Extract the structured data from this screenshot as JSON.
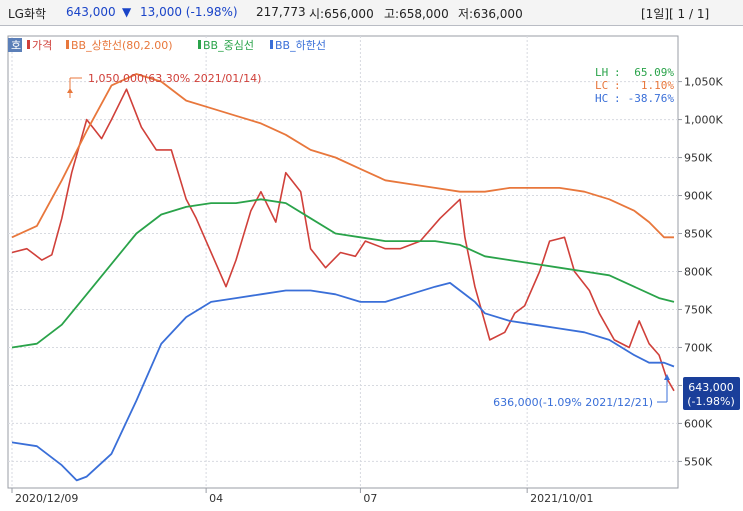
{
  "header": {
    "symbol": "LG화학",
    "price": "643,000",
    "change_arrow": "▼",
    "change": "13,000 (-1.98%)",
    "volume": "217,773",
    "open": "시:656,000",
    "high": "고:658,000",
    "low": "저:636,000",
    "period": "[1일][ 1 / 1]"
  },
  "corner_label": "호",
  "legend": [
    {
      "label": "가격",
      "color": "#d0403a"
    },
    {
      "label": "BB_상한선(80,2.00)",
      "color": "#e8773c"
    },
    {
      "label": "BB_중심선",
      "color": "#2aa34a"
    },
    {
      "label": "BB_하한선",
      "color": "#3a6fd8"
    }
  ],
  "stats": [
    {
      "name": "LH",
      "value": "65.09%",
      "color": "#2aa34a"
    },
    {
      "name": "LC",
      "value": "1.10%",
      "color": "#e8773c"
    },
    {
      "name": "HC",
      "value": "-38.76%",
      "color": "#3a6fd8"
    }
  ],
  "annotations": {
    "high": "1,050,000(63.30% 2021/01/14)",
    "low": "636,000(-1.09% 2021/12/21)"
  },
  "price_tag": {
    "price": "643,000",
    "change": "(-1.98%)"
  },
  "chart_data": {
    "type": "line",
    "y_axis_ticks": [
      "1,050K",
      "1,000K",
      "950K",
      "900K",
      "850K",
      "800K",
      "750K",
      "700K",
      "650K",
      "600K",
      "550K"
    ],
    "y_tick_values": [
      1050,
      1000,
      950,
      900,
      850,
      800,
      750,
      700,
      650,
      600,
      550
    ],
    "ylim": [
      515,
      1110
    ],
    "x_axis_ticks": [
      "2020/12/09",
      "04",
      "07",
      "2021/10/01"
    ],
    "x_tick_index": [
      0,
      78,
      140,
      207
    ],
    "n_bars": 266,
    "series": [
      {
        "name": "가격",
        "color": "#d0403a",
        "points": [
          [
            0,
            825
          ],
          [
            6,
            830
          ],
          [
            12,
            815
          ],
          [
            16,
            822
          ],
          [
            20,
            870
          ],
          [
            24,
            930
          ],
          [
            30,
            1000
          ],
          [
            36,
            975
          ],
          [
            40,
            1000
          ],
          [
            46,
            1040
          ],
          [
            52,
            990
          ],
          [
            58,
            960
          ],
          [
            64,
            960
          ],
          [
            70,
            895
          ],
          [
            74,
            870
          ],
          [
            78,
            840
          ],
          [
            82,
            810
          ],
          [
            86,
            780
          ],
          [
            90,
            815
          ],
          [
            96,
            880
          ],
          [
            100,
            905
          ],
          [
            106,
            865
          ],
          [
            110,
            930
          ],
          [
            116,
            905
          ],
          [
            120,
            830
          ],
          [
            126,
            805
          ],
          [
            132,
            825
          ],
          [
            138,
            820
          ],
          [
            142,
            840
          ],
          [
            150,
            830
          ],
          [
            156,
            830
          ],
          [
            164,
            840
          ],
          [
            172,
            870
          ],
          [
            180,
            895
          ],
          [
            182,
            845
          ],
          [
            186,
            780
          ],
          [
            192,
            710
          ],
          [
            198,
            720
          ],
          [
            202,
            745
          ],
          [
            206,
            755
          ],
          [
            212,
            800
          ],
          [
            216,
            840
          ],
          [
            222,
            845
          ],
          [
            226,
            800
          ],
          [
            232,
            775
          ],
          [
            236,
            745
          ],
          [
            242,
            710
          ],
          [
            248,
            700
          ],
          [
            252,
            735
          ],
          [
            256,
            705
          ],
          [
            260,
            690
          ],
          [
            263,
            660
          ],
          [
            266,
            643
          ]
        ]
      },
      {
        "name": "BB_상한선(80,2.00)",
        "color": "#e8773c",
        "points": [
          [
            0,
            845
          ],
          [
            10,
            860
          ],
          [
            20,
            920
          ],
          [
            30,
            985
          ],
          [
            40,
            1045
          ],
          [
            50,
            1060
          ],
          [
            60,
            1050
          ],
          [
            70,
            1025
          ],
          [
            80,
            1015
          ],
          [
            90,
            1005
          ],
          [
            100,
            995
          ],
          [
            110,
            980
          ],
          [
            120,
            960
          ],
          [
            130,
            950
          ],
          [
            140,
            935
          ],
          [
            150,
            920
          ],
          [
            160,
            915
          ],
          [
            170,
            910
          ],
          [
            180,
            905
          ],
          [
            190,
            905
          ],
          [
            200,
            910
          ],
          [
            210,
            910
          ],
          [
            220,
            910
          ],
          [
            230,
            905
          ],
          [
            240,
            895
          ],
          [
            250,
            880
          ],
          [
            256,
            865
          ],
          [
            262,
            845
          ],
          [
            266,
            845
          ]
        ]
      },
      {
        "name": "BB_중심선",
        "color": "#2aa34a",
        "points": [
          [
            0,
            700
          ],
          [
            10,
            705
          ],
          [
            20,
            730
          ],
          [
            30,
            770
          ],
          [
            40,
            810
          ],
          [
            50,
            850
          ],
          [
            60,
            875
          ],
          [
            70,
            885
          ],
          [
            80,
            890
          ],
          [
            90,
            890
          ],
          [
            100,
            895
          ],
          [
            110,
            890
          ],
          [
            120,
            870
          ],
          [
            130,
            850
          ],
          [
            140,
            845
          ],
          [
            150,
            840
          ],
          [
            160,
            840
          ],
          [
            170,
            840
          ],
          [
            180,
            835
          ],
          [
            190,
            820
          ],
          [
            200,
            815
          ],
          [
            210,
            810
          ],
          [
            220,
            805
          ],
          [
            230,
            800
          ],
          [
            240,
            795
          ],
          [
            250,
            780
          ],
          [
            260,
            765
          ],
          [
            266,
            760
          ]
        ]
      },
      {
        "name": "BB_하한선",
        "color": "#3a6fd8",
        "points": [
          [
            0,
            575
          ],
          [
            10,
            570
          ],
          [
            20,
            545
          ],
          [
            26,
            525
          ],
          [
            30,
            530
          ],
          [
            40,
            560
          ],
          [
            50,
            630
          ],
          [
            60,
            705
          ],
          [
            70,
            740
          ],
          [
            80,
            760
          ],
          [
            90,
            765
          ],
          [
            100,
            770
          ],
          [
            110,
            775
          ],
          [
            120,
            775
          ],
          [
            130,
            770
          ],
          [
            140,
            760
          ],
          [
            150,
            760
          ],
          [
            160,
            770
          ],
          [
            170,
            780
          ],
          [
            176,
            785
          ],
          [
            180,
            775
          ],
          [
            186,
            760
          ],
          [
            190,
            745
          ],
          [
            200,
            735
          ],
          [
            210,
            730
          ],
          [
            220,
            725
          ],
          [
            230,
            720
          ],
          [
            240,
            710
          ],
          [
            250,
            690
          ],
          [
            256,
            680
          ],
          [
            262,
            680
          ],
          [
            266,
            675
          ]
        ]
      }
    ]
  }
}
